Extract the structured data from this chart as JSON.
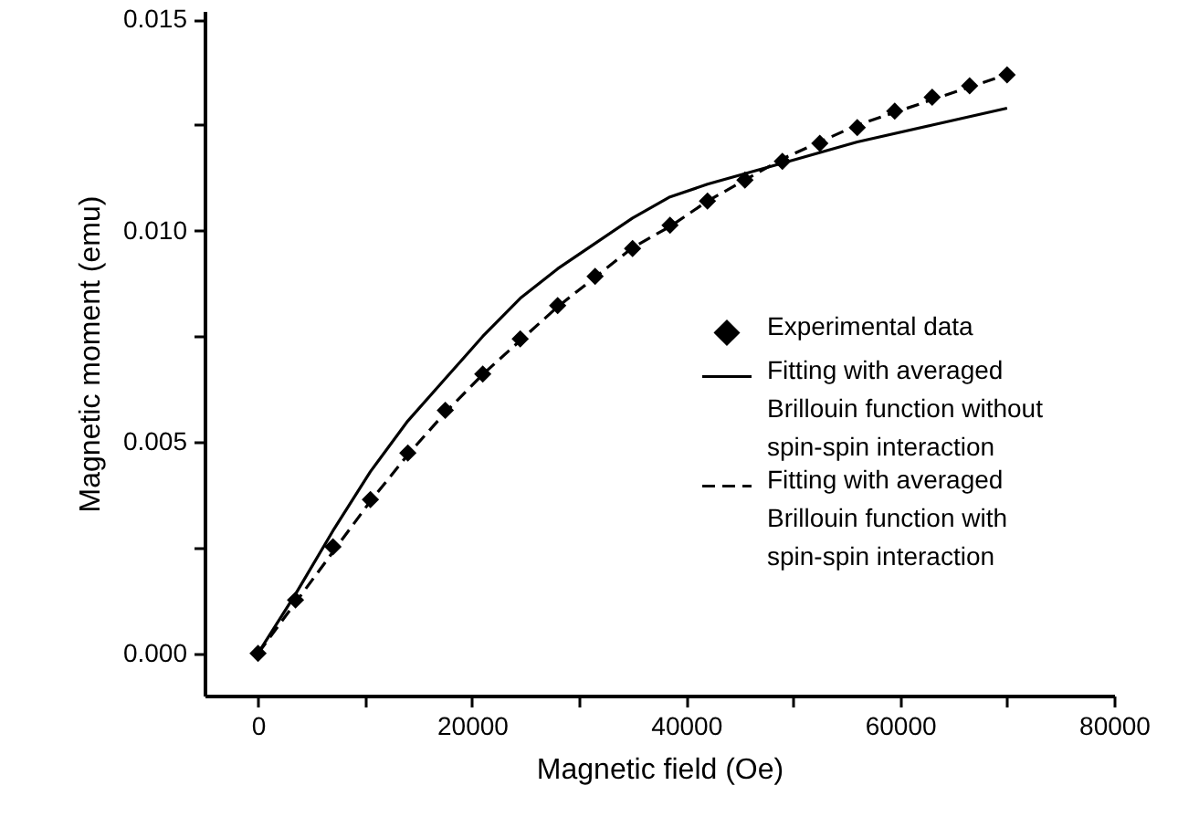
{
  "chart_data": {
    "type": "scatter",
    "xlabel": "Magnetic field (Oe)",
    "ylabel": "Magnetic moment (emu)",
    "xlim": [
      -5000,
      80000
    ],
    "xticks": [
      0,
      {
        "value": 10000,
        "label": null
      },
      20000,
      {
        "value": 30000,
        "label": null
      },
      40000,
      {
        "value": 50000,
        "label": null
      },
      60000,
      {
        "value": 70000,
        "label": null
      },
      80000
    ],
    "ylim": [
      -0.001,
      0.0152
    ],
    "yticks": [
      {
        "value": 0,
        "label": "0.000"
      },
      {
        "value": 0.0025,
        "label": null
      },
      {
        "value": 0.005,
        "label": "0.005"
      },
      {
        "value": 0.0075,
        "label": null
      },
      {
        "value": 0.01,
        "label": "0.010"
      },
      {
        "value": 0.0125,
        "label": null
      },
      {
        "value": 0.015,
        "label": "0.015"
      }
    ],
    "legend": "right",
    "grid": false,
    "series": [
      {
        "name": "Experimental data",
        "type": "scatter",
        "marker": "diamond",
        "color": "#000000",
        "x": [
          0,
          3500,
          7000,
          10500,
          14000,
          17500,
          21000,
          24500,
          28000,
          31500,
          35000,
          38500,
          42000,
          45500,
          49000,
          52500,
          56000,
          59500,
          63000,
          66500,
          70000
        ],
        "values": [
          0,
          0.00126,
          0.00252,
          0.00364,
          0.00474,
          0.00575,
          0.00661,
          0.00744,
          0.00823,
          0.00892,
          0.00958,
          0.01013,
          0.0107,
          0.0112,
          0.01164,
          0.01207,
          0.01244,
          0.01283,
          0.01316,
          0.01343,
          0.01369
        ]
      },
      {
        "name": "Fitting with averaged Brillouin function without spin-spin interaction",
        "type": "line",
        "line_style": "solid",
        "marker": "none",
        "color": "#000000",
        "x": [
          0,
          3500,
          7000,
          10500,
          14000,
          17500,
          21000,
          24500,
          28000,
          31500,
          35000,
          38500,
          42000,
          49000,
          56000,
          63000,
          70000
        ],
        "values": [
          0,
          0.0014,
          0.0029,
          0.0043,
          0.0055,
          0.0065,
          0.0075,
          0.0084,
          0.0091,
          0.0097,
          0.0103,
          0.0108,
          0.0111,
          0.0116,
          0.0121,
          0.0125,
          0.0129
        ]
      },
      {
        "name": "Fitting with averaged Brillouin function with spin-spin interaction",
        "type": "line",
        "line_style": "dashed",
        "marker": "none",
        "color": "#000000",
        "x": [
          0,
          3500,
          7000,
          10500,
          14000,
          17500,
          21000,
          24500,
          28000,
          31500,
          35000,
          38500,
          42000,
          45500,
          49000,
          52500,
          56000,
          59500,
          63000,
          66500,
          70000
        ],
        "values": [
          0,
          0.0012,
          0.0024,
          0.0036,
          0.0047,
          0.0057,
          0.0066,
          0.0074,
          0.0082,
          0.0089,
          0.0096,
          0.0101,
          0.0107,
          0.0112,
          0.0117,
          0.0121,
          0.0125,
          0.0128,
          0.0131,
          0.0134,
          0.0137
        ]
      }
    ]
  }
}
